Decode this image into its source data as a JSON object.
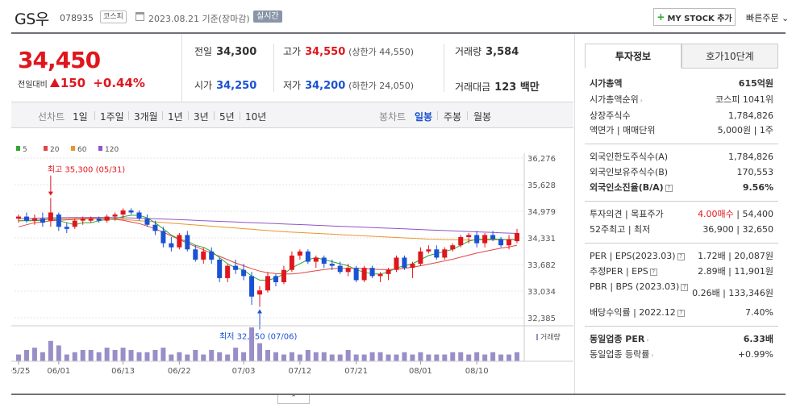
{
  "header": {
    "name": "GS우",
    "code": "078935",
    "market": "코스피",
    "date_text": "2023.08.21 기준(장마감)",
    "live_badge": "실시간",
    "mystock_label": "MY STOCK 추가",
    "quick_order_label": "빠른주문",
    "quick_order_arrow": "⌄"
  },
  "price": {
    "current": "34,450",
    "change_label": "전일대비",
    "change": "150",
    "change_pct": "+0.44%"
  },
  "quote": {
    "prev_label": "전일",
    "prev_value": "34,300",
    "high_label": "고가",
    "high_value": "34,550",
    "high_limit": "(상한가 44,550)",
    "volume_label": "거래량",
    "volume_value": "3,584",
    "open_label": "시가",
    "open_value": "34,250",
    "low_label": "저가",
    "low_value": "34,200",
    "low_limit": "(하한가 24,050)",
    "amount_label": "거래대금",
    "amount_value": "123 백만"
  },
  "period_bar": {
    "line_label": "선차트",
    "periods": [
      "1일",
      "1주일",
      "3개월",
      "1년",
      "3년",
      "5년",
      "10년"
    ],
    "candle_label": "봉차트",
    "candle_types": [
      "일봉",
      "주봉",
      "월봉"
    ],
    "selected_candle": "일봉"
  },
  "chart_data": {
    "type": "candlestick",
    "legend": [
      "5",
      "20",
      "60",
      "120"
    ],
    "legend_colors": [
      "#2ea82e",
      "#e54444",
      "#e8962b",
      "#9055c8"
    ],
    "up_color": "#e0161d",
    "down_color": "#1a52d2",
    "yticks": [
      "36,276",
      "35,628",
      "34,979",
      "34,331",
      "33,682",
      "33,034",
      "32,385"
    ],
    "ylim": [
      32385,
      36276
    ],
    "xticks": [
      "05/25",
      "06/01",
      "06/13",
      "06/22",
      "07/03",
      "07/12",
      "07/21",
      "08/01",
      "08/10"
    ],
    "xtick_index": [
      0,
      5,
      13,
      20,
      28,
      35,
      42,
      50,
      57
    ],
    "high_annotation": "최고 35,300 (05/31)",
    "high_index": 4,
    "high_value": 35300,
    "low_annotation": "최저 32,650 (07/06)",
    "low_index": 30,
    "low_value": 32650,
    "volume_label": "거래량",
    "candles": [
      [
        34800,
        34900,
        34700,
        34850
      ],
      [
        34850,
        34950,
        34700,
        34750
      ],
      [
        34750,
        34900,
        34650,
        34800
      ],
      [
        34800,
        34950,
        34600,
        34700
      ],
      [
        34750,
        35300,
        34600,
        34950
      ],
      [
        34900,
        34950,
        34500,
        34600
      ],
      [
        34600,
        34700,
        34450,
        34550
      ],
      [
        34600,
        34800,
        34550,
        34750
      ],
      [
        34750,
        34850,
        34650,
        34800
      ],
      [
        34750,
        34850,
        34700,
        34800
      ],
      [
        34800,
        34850,
        34700,
        34750
      ],
      [
        34750,
        34900,
        34700,
        34850
      ],
      [
        34850,
        34950,
        34750,
        34900
      ],
      [
        34900,
        35050,
        34800,
        35000
      ],
      [
        35000,
        35050,
        34900,
        34950
      ],
      [
        34950,
        35000,
        34750,
        34800
      ],
      [
        34800,
        34900,
        34600,
        34650
      ],
      [
        34650,
        34750,
        34400,
        34500
      ],
      [
        34500,
        34600,
        34100,
        34200
      ],
      [
        34200,
        34350,
        34000,
        34100
      ],
      [
        34100,
        34450,
        34050,
        34400
      ],
      [
        34400,
        34500,
        34000,
        34050
      ],
      [
        34050,
        34150,
        33750,
        33800
      ],
      [
        33800,
        34100,
        33700,
        34000
      ],
      [
        34000,
        34100,
        33700,
        33800
      ],
      [
        33800,
        33850,
        33250,
        33350
      ],
      [
        33350,
        33700,
        33250,
        33650
      ],
      [
        33650,
        33800,
        33450,
        33550
      ],
      [
        33550,
        33700,
        33300,
        33400
      ],
      [
        33400,
        33500,
        32700,
        32900
      ],
      [
        32950,
        33150,
        32650,
        33050
      ],
      [
        33050,
        33500,
        33000,
        33400
      ],
      [
        33400,
        33450,
        33150,
        33250
      ],
      [
        33250,
        33650,
        33200,
        33550
      ],
      [
        33550,
        34000,
        33500,
        33900
      ],
      [
        33900,
        34050,
        33800,
        34000
      ],
      [
        34000,
        34050,
        33700,
        33750
      ],
      [
        33750,
        33900,
        33600,
        33850
      ],
      [
        33850,
        33900,
        33600,
        33700
      ],
      [
        33700,
        33800,
        33550,
        33650
      ],
      [
        33650,
        33750,
        33450,
        33500
      ],
      [
        33500,
        33700,
        33400,
        33600
      ],
      [
        33600,
        33650,
        33250,
        33300
      ],
      [
        33300,
        33650,
        33250,
        33600
      ],
      [
        33600,
        33650,
        33350,
        33400
      ],
      [
        33400,
        33500,
        33250,
        33450
      ],
      [
        33450,
        33600,
        33300,
        33550
      ],
      [
        33550,
        33900,
        33500,
        33850
      ],
      [
        33850,
        33900,
        33550,
        33600
      ],
      [
        33600,
        33750,
        33350,
        33700
      ],
      [
        33700,
        34100,
        33650,
        34000
      ],
      [
        34000,
        34150,
        33950,
        34050
      ],
      [
        34050,
        34150,
        33800,
        33850
      ],
      [
        33850,
        34100,
        33800,
        34050
      ],
      [
        34050,
        34200,
        34000,
        34150
      ],
      [
        34150,
        34400,
        34100,
        34350
      ],
      [
        34350,
        34450,
        34200,
        34400
      ],
      [
        34400,
        34500,
        34100,
        34200
      ],
      [
        34200,
        34450,
        34100,
        34400
      ],
      [
        34400,
        34500,
        34250,
        34300
      ],
      [
        34300,
        34350,
        34100,
        34150
      ],
      [
        34150,
        34400,
        34050,
        34300
      ],
      [
        34250,
        34550,
        34200,
        34450
      ]
    ],
    "volumes": [
      3,
      5,
      6,
      4,
      9,
      7,
      3,
      4,
      5,
      5,
      4,
      6,
      5,
      6,
      5,
      4,
      4,
      5,
      6,
      3,
      4,
      3,
      5,
      3,
      5,
      4,
      3,
      6,
      4,
      15,
      8,
      5,
      4,
      3,
      4,
      3,
      5,
      4,
      4,
      3,
      3,
      5,
      3,
      3,
      4,
      4,
      3,
      3,
      4,
      3,
      4,
      3,
      3,
      3,
      4,
      4,
      3,
      4,
      3,
      4,
      3,
      3,
      4
    ],
    "ma5": [
      34750,
      34750,
      34750,
      34760,
      34800,
      34750,
      34700,
      34650,
      34700,
      34700,
      34750,
      34780,
      34800,
      34850,
      34880,
      34880,
      34820,
      34700,
      34550,
      34400,
      34300,
      34250,
      34150,
      34100,
      34000,
      33850,
      33700,
      33600,
      33550,
      33400,
      33300,
      33300,
      33350,
      33450,
      33600,
      33700,
      33800,
      33850,
      33800,
      33750,
      33700,
      33650,
      33550,
      33500,
      33450,
      33450,
      33500,
      33600,
      33650,
      33700,
      33800,
      33900,
      33950,
      34000,
      34050,
      34150,
      34250,
      34300,
      34300,
      34300,
      34300,
      34280,
      34300
    ],
    "ma20": [
      34600,
      34650,
      34700,
      34720,
      34750,
      34760,
      34770,
      34780,
      34790,
      34800,
      34800,
      34790,
      34780,
      34760,
      34720,
      34680,
      34620,
      34550,
      34470,
      34380,
      34290,
      34200,
      34120,
      34040,
      33960,
      33880,
      33800,
      33720,
      33650,
      33580,
      33520,
      33480,
      33460,
      33450,
      33450,
      33470,
      33500,
      33530,
      33560,
      33580,
      33590,
      33590,
      33590,
      33580,
      33570,
      33560,
      33560,
      33570,
      33590,
      33620,
      33650,
      33690,
      33730,
      33770,
      33810,
      33860,
      33910,
      33960,
      34000,
      34040,
      34080,
      34110,
      34150
    ],
    "ma60": [
      34750,
      34760,
      34770,
      34780,
      34790,
      34795,
      34800,
      34805,
      34810,
      34810,
      34805,
      34800,
      34790,
      34780,
      34765,
      34750,
      34735,
      34720,
      34705,
      34690,
      34675,
      34660,
      34645,
      34630,
      34615,
      34600,
      34585,
      34570,
      34555,
      34540,
      34525,
      34510,
      34495,
      34480,
      34470,
      34460,
      34450,
      34440,
      34430,
      34420,
      34410,
      34400,
      34390,
      34380,
      34370,
      34360,
      34350,
      34340,
      34330,
      34320,
      34310,
      34300,
      34295,
      34290,
      34285,
      34280,
      34280,
      34280,
      34280,
      34280,
      34285,
      34290,
      34300
    ],
    "ma120": [
      34800,
      34805,
      34810,
      34815,
      34820,
      34822,
      34824,
      34826,
      34828,
      34830,
      34830,
      34828,
      34825,
      34820,
      34815,
      34810,
      34805,
      34798,
      34790,
      34782,
      34774,
      34766,
      34758,
      34750,
      34742,
      34734,
      34726,
      34718,
      34710,
      34702,
      34694,
      34686,
      34678,
      34670,
      34662,
      34654,
      34646,
      34638,
      34630,
      34622,
      34614,
      34606,
      34598,
      34590,
      34582,
      34574,
      34566,
      34558,
      34550,
      34542,
      34534,
      34526,
      34518,
      34510,
      34502,
      34494,
      34486,
      34478,
      34470,
      34462,
      34454,
      34446,
      34438
    ]
  },
  "right_panel": {
    "tab_invest": "투자정보",
    "tab_hoga": "호가10단계",
    "market_cap_label": "시가총액",
    "market_cap_value": "615억원",
    "market_cap_rank_label": "시가총액순위",
    "market_cap_rank_value": "코스피 1041위",
    "shares_label": "상장주식수",
    "shares_value": "1,784,826",
    "par_label": "액면가 | 매매단위",
    "par_value": "5,000원 | 1주",
    "foreign_limit_label": "외국인한도주식수(A)",
    "foreign_limit_value": "1,784,826",
    "foreign_hold_label": "외국인보유주식수(B)",
    "foreign_hold_value": "170,553",
    "foreign_rate_label": "외국인소진율(B/A)",
    "foreign_rate_value": "9.56%",
    "opinion_label": "투자의견 | 목표주가",
    "opinion_value": "4.00매수",
    "target_value": "| 54,400",
    "range52_label": "52주최고 | 최저",
    "range52_value": "36,900 | 32,650",
    "per_label": "PER | EPS(2023.03)",
    "per_value": "1.72배 | 20,087원",
    "est_per_label": "추정PER | EPS",
    "est_per_value": "2.89배 | 11,901원",
    "pbr_label": "PBR | BPS (2023.03)",
    "pbr_value": "0.26배 | 133,346원",
    "div_label": "배당수익률 | 2022.12",
    "div_value": "7.40%",
    "ind_per_label": "동일업종 PER",
    "ind_per_value": "6.33배",
    "ind_rate_label": "동일업종 등락률",
    "ind_rate_value": "+0.99%",
    "help_glyph": "?",
    "more_glyph": "›"
  },
  "toggle_glyph": "⌃"
}
